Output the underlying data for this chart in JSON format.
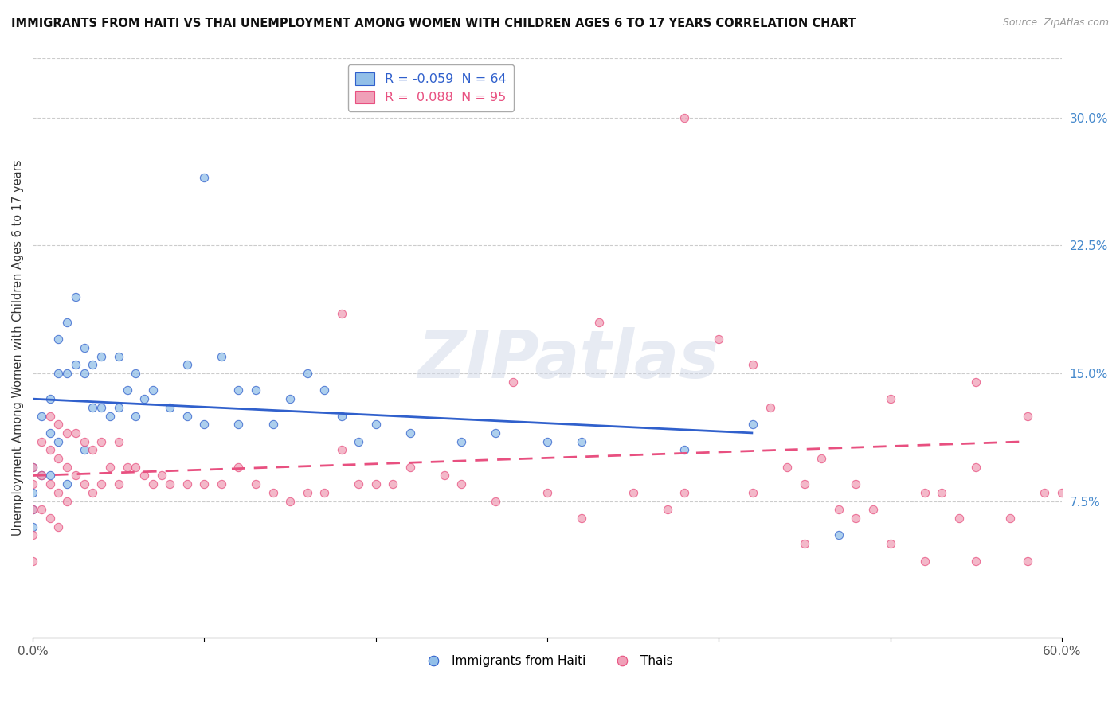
{
  "title": "IMMIGRANTS FROM HAITI VS THAI UNEMPLOYMENT AMONG WOMEN WITH CHILDREN AGES 6 TO 17 YEARS CORRELATION CHART",
  "source": "Source: ZipAtlas.com",
  "ylabel": "Unemployment Among Women with Children Ages 6 to 17 years",
  "xlim": [
    0.0,
    0.6
  ],
  "ylim": [
    -0.005,
    0.335
  ],
  "yticks_right": [
    0.075,
    0.15,
    0.225,
    0.3
  ],
  "ytick_labels_right": [
    "7.5%",
    "15.0%",
    "22.5%",
    "30.0%"
  ],
  "haiti_color": "#92bfe8",
  "thai_color": "#f0a0b8",
  "haiti_line_color": "#3060cc",
  "thai_line_color": "#e85080",
  "R_haiti": -0.059,
  "N_haiti": 64,
  "R_thai": 0.088,
  "N_thai": 95,
  "legend_labels": [
    "Immigrants from Haiti",
    "Thais"
  ],
  "watermark": "ZIPatlas",
  "haiti_scatter_x": [
    0.0,
    0.0,
    0.0,
    0.0,
    0.005,
    0.005,
    0.01,
    0.01,
    0.01,
    0.015,
    0.015,
    0.015,
    0.02,
    0.02,
    0.02,
    0.025,
    0.025,
    0.03,
    0.03,
    0.03,
    0.035,
    0.035,
    0.04,
    0.04,
    0.045,
    0.05,
    0.05,
    0.055,
    0.06,
    0.06,
    0.065,
    0.07,
    0.08,
    0.09,
    0.09,
    0.1,
    0.1,
    0.11,
    0.12,
    0.12,
    0.13,
    0.14,
    0.15,
    0.16,
    0.17,
    0.18,
    0.19,
    0.2,
    0.22,
    0.25,
    0.27,
    0.3,
    0.32,
    0.38,
    0.42,
    0.47
  ],
  "haiti_scatter_y": [
    0.095,
    0.08,
    0.07,
    0.06,
    0.125,
    0.09,
    0.135,
    0.115,
    0.09,
    0.17,
    0.15,
    0.11,
    0.18,
    0.15,
    0.085,
    0.195,
    0.155,
    0.165,
    0.15,
    0.105,
    0.155,
    0.13,
    0.16,
    0.13,
    0.125,
    0.16,
    0.13,
    0.14,
    0.15,
    0.125,
    0.135,
    0.14,
    0.13,
    0.155,
    0.125,
    0.265,
    0.12,
    0.16,
    0.14,
    0.12,
    0.14,
    0.12,
    0.135,
    0.15,
    0.14,
    0.125,
    0.11,
    0.12,
    0.115,
    0.11,
    0.115,
    0.11,
    0.11,
    0.105,
    0.12,
    0.055
  ],
  "thai_scatter_x": [
    0.0,
    0.0,
    0.0,
    0.0,
    0.0,
    0.005,
    0.005,
    0.005,
    0.01,
    0.01,
    0.01,
    0.01,
    0.015,
    0.015,
    0.015,
    0.015,
    0.02,
    0.02,
    0.02,
    0.025,
    0.025,
    0.03,
    0.03,
    0.035,
    0.035,
    0.04,
    0.04,
    0.045,
    0.05,
    0.05,
    0.055,
    0.06,
    0.065,
    0.07,
    0.075,
    0.08,
    0.09,
    0.1,
    0.11,
    0.12,
    0.13,
    0.14,
    0.15,
    0.16,
    0.17,
    0.18,
    0.18,
    0.19,
    0.2,
    0.21,
    0.22,
    0.24,
    0.25,
    0.27,
    0.28,
    0.3,
    0.32,
    0.33,
    0.35,
    0.37,
    0.38,
    0.38,
    0.4,
    0.42,
    0.42,
    0.43,
    0.44,
    0.45,
    0.45,
    0.46,
    0.47,
    0.48,
    0.48,
    0.49,
    0.5,
    0.5,
    0.52,
    0.52,
    0.53,
    0.54,
    0.55,
    0.55,
    0.55,
    0.57,
    0.58,
    0.58,
    0.59,
    0.6
  ],
  "thai_scatter_y": [
    0.095,
    0.085,
    0.07,
    0.055,
    0.04,
    0.11,
    0.09,
    0.07,
    0.125,
    0.105,
    0.085,
    0.065,
    0.12,
    0.1,
    0.08,
    0.06,
    0.115,
    0.095,
    0.075,
    0.115,
    0.09,
    0.11,
    0.085,
    0.105,
    0.08,
    0.11,
    0.085,
    0.095,
    0.11,
    0.085,
    0.095,
    0.095,
    0.09,
    0.085,
    0.09,
    0.085,
    0.085,
    0.085,
    0.085,
    0.095,
    0.085,
    0.08,
    0.075,
    0.08,
    0.08,
    0.185,
    0.105,
    0.085,
    0.085,
    0.085,
    0.095,
    0.09,
    0.085,
    0.075,
    0.145,
    0.08,
    0.065,
    0.18,
    0.08,
    0.07,
    0.3,
    0.08,
    0.17,
    0.155,
    0.08,
    0.13,
    0.095,
    0.05,
    0.085,
    0.1,
    0.07,
    0.065,
    0.085,
    0.07,
    0.135,
    0.05,
    0.04,
    0.08,
    0.08,
    0.065,
    0.145,
    0.095,
    0.04,
    0.065,
    0.125,
    0.04,
    0.08,
    0.08
  ]
}
